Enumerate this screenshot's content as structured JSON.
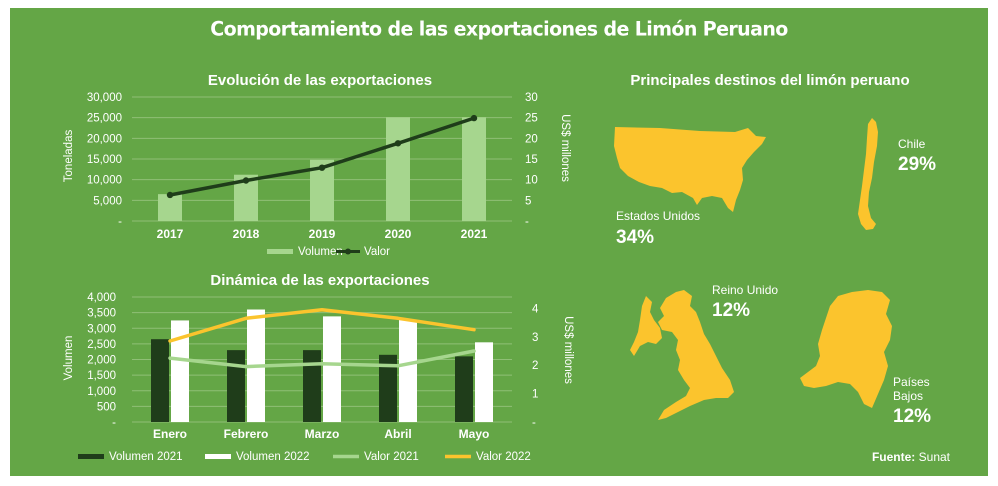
{
  "title": "Comportamiento de las exportaciones de Limón Peruano",
  "colors": {
    "background": "#64a646",
    "volumen": "#a6d68e",
    "valor": "#1f3d1a",
    "volumen_2021": "#1f3d1a",
    "volumen_2022": "#ffffff",
    "valor_2021": "#a6d68e",
    "valor_2022": "#fbc42d",
    "map": "#fbc42d"
  },
  "chart_data": [
    {
      "type": "bar",
      "title": "Evolución de las exportaciones",
      "categories": [
        "2017",
        "2018",
        "2019",
        "2020",
        "2021"
      ],
      "ylabel": "Toneladas",
      "ylabel_right": "US$ millones",
      "ylim": [
        0,
        30000
      ],
      "ylim_right": [
        0,
        30
      ],
      "y_ticks": [
        "30,000",
        "25,000",
        "20,000",
        "15,000",
        "10,000",
        "5,000",
        "-"
      ],
      "y_ticks_right": [
        "30",
        "25",
        "20",
        "15",
        "10",
        "5",
        "-"
      ],
      "series": [
        {
          "name": "Volumen",
          "type": "bar",
          "axis": "left",
          "values": [
            6500,
            11200,
            14800,
            25100,
            25100
          ]
        },
        {
          "name": "Valor",
          "type": "line",
          "axis": "right",
          "values": [
            6.3,
            9.8,
            12.9,
            18.8,
            24.9
          ]
        }
      ],
      "legend": [
        "Volumen",
        "Valor"
      ]
    },
    {
      "type": "bar",
      "title": "Dinámica de las exportaciones",
      "categories": [
        "Enero",
        "Febrero",
        "Marzo",
        "Abril",
        "Mayo"
      ],
      "ylabel": "Volumen",
      "ylabel_right": "US$ millones",
      "ylim": [
        0,
        4000
      ],
      "ylim_right": [
        0,
        4.4
      ],
      "y_ticks": [
        "4,000",
        "3,500",
        "3,000",
        "2,500",
        "2,000",
        "1,500",
        "1,000",
        "500",
        "-"
      ],
      "y_ticks_right": [
        "4",
        "3",
        "2",
        "1",
        "-"
      ],
      "series": [
        {
          "name": "Volumen 2021",
          "type": "bar",
          "axis": "left",
          "values": [
            2650,
            2300,
            2300,
            2150,
            2100
          ]
        },
        {
          "name": "Volumen 2022",
          "type": "bar",
          "axis": "left",
          "values": [
            3250,
            3600,
            3380,
            3280,
            2550
          ]
        },
        {
          "name": "Valor 2021",
          "type": "line",
          "axis": "right",
          "values": [
            2.25,
            1.95,
            2.05,
            1.98,
            2.5
          ]
        },
        {
          "name": "Valor 2022",
          "type": "line",
          "axis": "right",
          "values": [
            2.85,
            3.65,
            3.95,
            3.65,
            3.25
          ]
        }
      ],
      "legend": [
        "Volumen 2021",
        "Volumen 2022",
        "Valor 2021",
        "Valor 2022"
      ]
    }
  ],
  "destinations": {
    "title": "Principales destinos del limón peruano",
    "countries": [
      {
        "name": "Estados Unidos",
        "pct": "34%"
      },
      {
        "name": "Chile",
        "pct": "29%"
      },
      {
        "name": "Reino Unido",
        "pct": "12%"
      },
      {
        "name_lines": [
          "Países",
          "Bajos"
        ],
        "pct": "12%"
      }
    ]
  },
  "source": {
    "label": "Fuente:",
    "value": "Sunat"
  }
}
